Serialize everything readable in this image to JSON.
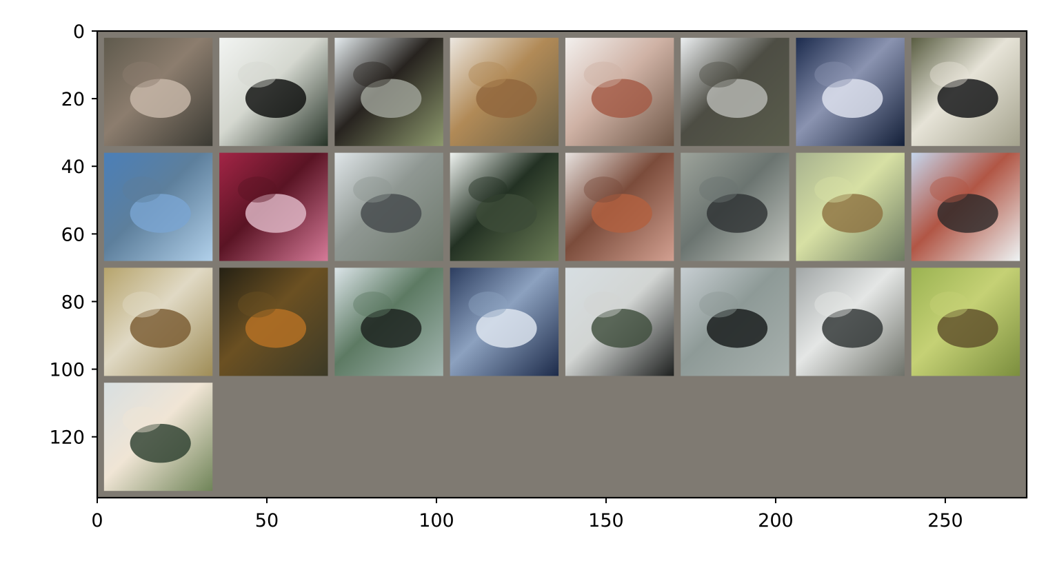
{
  "image": {
    "description_type": "image-grid",
    "grid": {
      "rows": 4,
      "cols": 8,
      "tile_count": 25,
      "background_color": "#7f7a72"
    },
    "x_axis": {
      "range": [
        0,
        274
      ],
      "ticks": [
        0,
        50,
        100,
        150,
        200,
        250
      ],
      "tick_labels": [
        "0",
        "50",
        "100",
        "150",
        "200",
        "250"
      ]
    },
    "y_axis": {
      "range": [
        0,
        138
      ],
      "inverted": true,
      "ticks": [
        0,
        20,
        40,
        60,
        80,
        100,
        120
      ],
      "tick_labels": [
        "0",
        "20",
        "40",
        "60",
        "80",
        "100",
        "120"
      ]
    },
    "tiles": [
      {
        "name": "tile-1",
        "colors": [
          "#5f5a4d",
          "#c8b8aa",
          "#8c7d6e",
          "#3b3a33"
        ]
      },
      {
        "name": "tile-2",
        "colors": [
          "#f2f4f2",
          "#0d0f0e",
          "#d5d8d0",
          "#263327"
        ]
      },
      {
        "name": "tile-3",
        "colors": [
          "#e5ecef",
          "#a0a39a",
          "#27231f",
          "#8e9a6e"
        ]
      },
      {
        "name": "tile-4",
        "colors": [
          "#ece7e0",
          "#91673d",
          "#b18a57",
          "#6a6044"
        ]
      },
      {
        "name": "tile-5",
        "colors": [
          "#f3f0ee",
          "#a35a45",
          "#cfb2a5",
          "#6e5646"
        ]
      },
      {
        "name": "tile-6",
        "colors": [
          "#eceff1",
          "#b7b8b3",
          "#4d4d44",
          "#5a5d4c"
        ]
      },
      {
        "name": "tile-7",
        "colors": [
          "#1c2b4d",
          "#dfe3ef",
          "#8a93b0",
          "#142039"
        ]
      },
      {
        "name": "tile-8",
        "colors": [
          "#595d42",
          "#111215",
          "#e6e3d7",
          "#a4a28d"
        ]
      },
      {
        "name": "tile-9",
        "colors": [
          "#4b7fb8",
          "#7aa5d2",
          "#5d7f9c",
          "#b1d0ea"
        ]
      },
      {
        "name": "tile-10",
        "colors": [
          "#a32546",
          "#e0b9c8",
          "#5a1424",
          "#d57a98"
        ]
      },
      {
        "name": "tile-11",
        "colors": [
          "#dfe5e8",
          "#454b4d",
          "#8f9792",
          "#6d786c"
        ]
      },
      {
        "name": "tile-12",
        "colors": [
          "#eef2ef",
          "#3d4c38",
          "#233123",
          "#6d7f58"
        ]
      },
      {
        "name": "tile-13",
        "colors": [
          "#e7e2df",
          "#b26040",
          "#7b4c3b",
          "#d2a091"
        ]
      },
      {
        "name": "tile-14",
        "colors": [
          "#9da39b",
          "#2f3334",
          "#6b7470",
          "#c5c9c3"
        ]
      },
      {
        "name": "tile-15",
        "colors": [
          "#a7b28e",
          "#8e7342",
          "#d7e0a4",
          "#6d7b62"
        ]
      },
      {
        "name": "tile-16",
        "colors": [
          "#c5d6ec",
          "#2e2a2a",
          "#b15645",
          "#eef3f4"
        ]
      },
      {
        "name": "tile-17",
        "colors": [
          "#b6a46c",
          "#7a5b32",
          "#e0d9c4",
          "#9f8d57"
        ]
      },
      {
        "name": "tile-18",
        "colors": [
          "#252114",
          "#b77224",
          "#6b5022",
          "#3c3a27"
        ]
      },
      {
        "name": "tile-19",
        "colors": [
          "#dbe4e8",
          "#1c221f",
          "#5d7a63",
          "#a2b6b0"
        ]
      },
      {
        "name": "tile-20",
        "colors": [
          "#2d3e60",
          "#dfe7f0",
          "#8ca1bf",
          "#1d2b4a"
        ]
      },
      {
        "name": "tile-21",
        "colors": [
          "#d7dee2",
          "#3f4e3d",
          "#d2d5d3",
          "#1e201f"
        ]
      },
      {
        "name": "tile-22",
        "colors": [
          "#c7ced2",
          "#171b1b",
          "#8e9a97",
          "#a8b1ae"
        ]
      },
      {
        "name": "tile-23",
        "colors": [
          "#a2a7a7",
          "#2f3434",
          "#e4e6e5",
          "#6e7169"
        ]
      },
      {
        "name": "tile-24",
        "colors": [
          "#9bb352",
          "#5f4f2b",
          "#c5d175",
          "#7b8e3e"
        ]
      },
      {
        "name": "tile-25",
        "colors": [
          "#d8dfe1",
          "#2e4131",
          "#f0e5d5",
          "#6f8458"
        ]
      }
    ]
  }
}
